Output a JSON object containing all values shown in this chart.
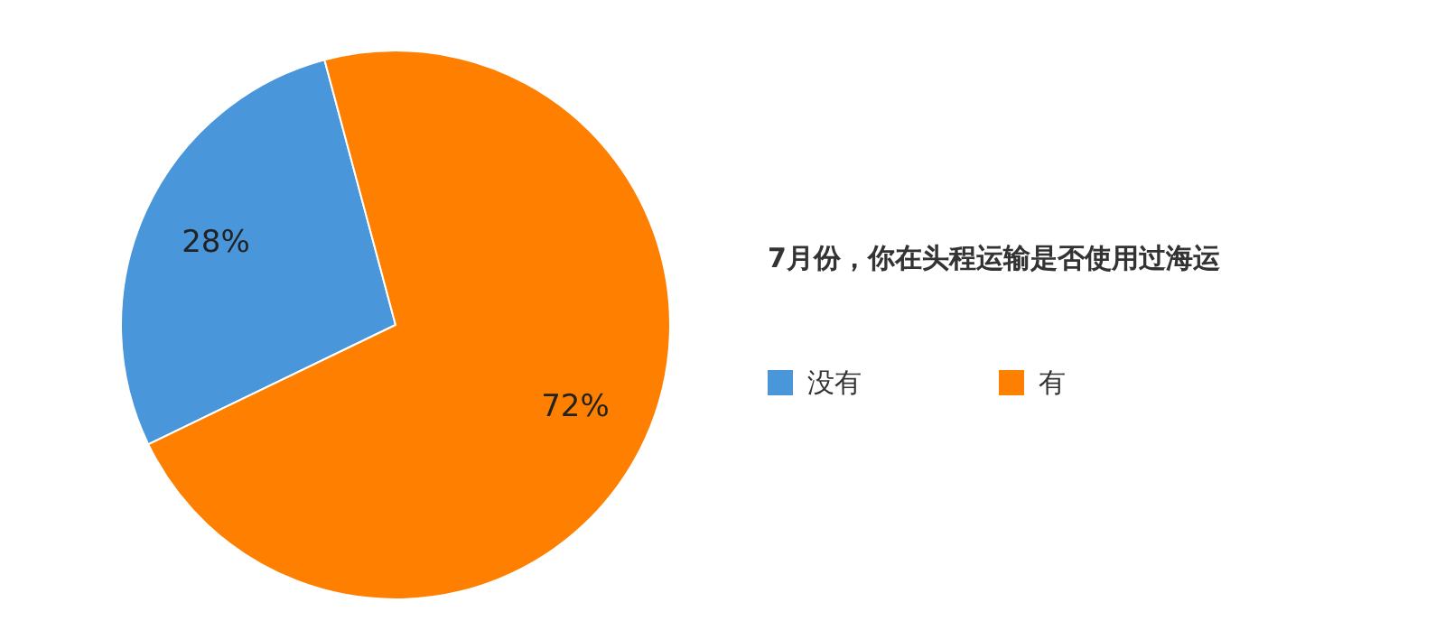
{
  "chart_data": {
    "type": "pie",
    "title": "7月份，你在头程运输是否使用过海运",
    "categories": [
      "没有",
      "有"
    ],
    "values": [
      28,
      72
    ],
    "value_labels": [
      "28%",
      "72%"
    ],
    "colors": [
      "#4a96da",
      "#ff7f00"
    ],
    "legend": "right"
  }
}
